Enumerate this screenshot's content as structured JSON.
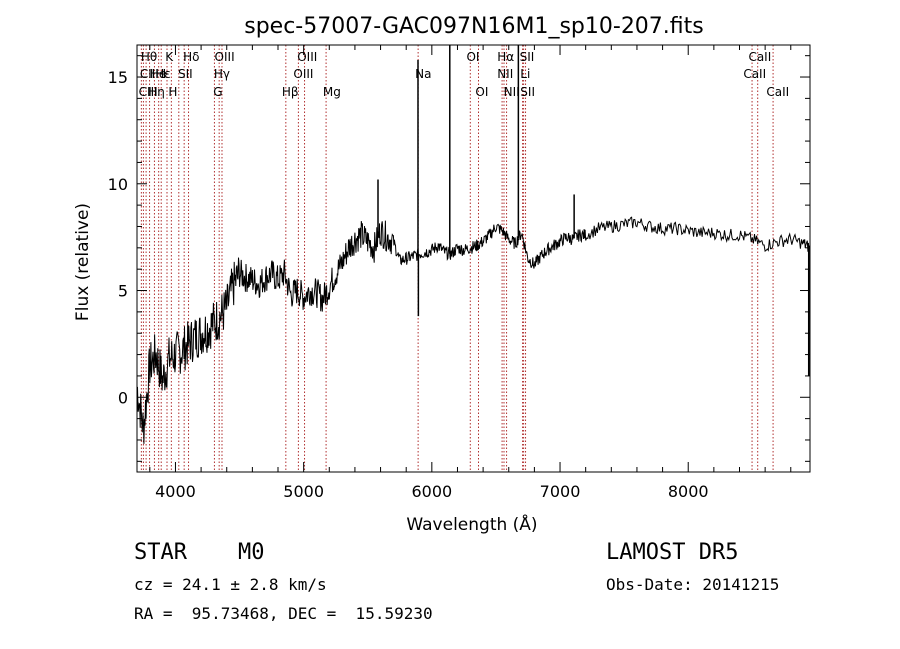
{
  "chart_data": {
    "type": "line",
    "title": "spec-57007-GAC097N16M1_sp10-207.fits",
    "xlabel": "Wavelength (Å)",
    "ylabel": "Flux (relative)",
    "xlim": [
      3700,
      8950
    ],
    "ylim": [
      -3.5,
      16.5
    ],
    "xticks": [
      4000,
      5000,
      6000,
      7000,
      8000
    ],
    "yticks": [
      0,
      5,
      10,
      15
    ],
    "grid": false,
    "series": [
      {
        "x": [
          3700,
          3750,
          3800,
          3850,
          3900,
          3950,
          4000,
          4050,
          4100,
          4150,
          4200,
          4250,
          4300,
          4350,
          4400,
          4450,
          4500,
          4550,
          4600,
          4650,
          4700,
          4750,
          4800,
          4850,
          4900,
          4950,
          5000,
          5050,
          5100,
          5150,
          5200,
          5250,
          5300,
          5350,
          5400,
          5450,
          5500,
          5550,
          5600,
          5650,
          5700,
          5750,
          5800,
          5850,
          5900,
          5950,
          6000,
          6050,
          6100,
          6150,
          6200,
          6250,
          6300,
          6350,
          6400,
          6450,
          6500,
          6550,
          6600,
          6650,
          6700,
          6750,
          6800,
          6850,
          6900,
          6950,
          7000,
          7050,
          7100,
          7150,
          7200,
          7300,
          7400,
          7500,
          7600,
          7700,
          7800,
          7900,
          8000,
          8100,
          8200,
          8300,
          8400,
          8500,
          8600,
          8700,
          8800,
          8900,
          8950
        ],
        "y": [
          0.5,
          -1.5,
          1.5,
          2.0,
          0.8,
          1.8,
          2.0,
          2.2,
          2.5,
          2.8,
          3.0,
          3.2,
          3.5,
          3.8,
          4.2,
          5.2,
          5.8,
          5.6,
          5.5,
          5.3,
          5.6,
          5.8,
          5.5,
          5.8,
          4.8,
          5.0,
          4.7,
          5.0,
          4.9,
          4.6,
          5.2,
          5.8,
          6.3,
          7.0,
          7.4,
          7.6,
          7.3,
          7.0,
          7.8,
          7.5,
          7.3,
          6.4,
          6.5,
          6.6,
          6.7,
          6.8,
          6.9,
          7.1,
          6.8,
          6.7,
          7.0,
          6.9,
          7.0,
          7.1,
          7.3,
          7.6,
          8.0,
          7.8,
          7.4,
          7.2,
          7.7,
          6.5,
          6.2,
          6.6,
          6.9,
          7.1,
          7.3,
          7.5,
          7.4,
          7.6,
          7.6,
          7.9,
          8.0,
          8.1,
          8.2,
          8.0,
          7.9,
          7.9,
          7.8,
          7.7,
          7.7,
          7.6,
          7.6,
          7.4,
          7.1,
          7.3,
          7.4,
          7.2,
          7.0
        ]
      }
    ],
    "spikes": [
      {
        "x": 5580,
        "top": 10.2
      },
      {
        "x": 5892,
        "top": 15.8
      },
      {
        "x": 5895,
        "top": 3.8
      },
      {
        "x": 6140,
        "top": 16.5
      },
      {
        "x": 6675,
        "top": 16.5
      },
      {
        "x": 7110,
        "top": 9.5
      },
      {
        "x": 8940,
        "top": 1.0
      }
    ],
    "lines": [
      {
        "x": 3734,
        "row": 0,
        "label": ""
      },
      {
        "x": 3750,
        "row": 1,
        "label": ""
      },
      {
        "x": 3771,
        "row": 0,
        "label": ""
      },
      {
        "x": 3798,
        "row": 2,
        "label": ""
      },
      {
        "x": 3836,
        "row": 2,
        "label": ""
      },
      {
        "x": 3869,
        "row": 1,
        "label": ""
      },
      {
        "x": 3889,
        "row": 0,
        "label": ""
      },
      {
        "x": 3934,
        "row": 0,
        "label": ""
      },
      {
        "x": 3968,
        "row": 1,
        "label": ""
      },
      {
        "x": 4026,
        "row": 1,
        "label": ""
      },
      {
        "x": 4068,
        "row": 0,
        "label": ""
      },
      {
        "x": 4102,
        "row": 1,
        "label": ""
      },
      {
        "x": 4304,
        "row": 2,
        "label": ""
      },
      {
        "x": 4341,
        "row": 1,
        "label": ""
      },
      {
        "x": 4363,
        "row": 0,
        "label": ""
      },
      {
        "x": 4861,
        "row": 2,
        "label": ""
      },
      {
        "x": 4959,
        "row": 1,
        "label": ""
      },
      {
        "x": 5007,
        "row": 0,
        "label": ""
      },
      {
        "x": 5175,
        "row": 2,
        "label": ""
      },
      {
        "x": 5893,
        "row": 1,
        "label": ""
      },
      {
        "x": 6300,
        "row": 0,
        "label": ""
      },
      {
        "x": 6364,
        "row": 2,
        "label": ""
      },
      {
        "x": 6548,
        "row": 1,
        "label": ""
      },
      {
        "x": 6563,
        "row": 0,
        "label": ""
      },
      {
        "x": 6583,
        "row": 2,
        "label": ""
      },
      {
        "x": 6708,
        "row": 1,
        "label": ""
      },
      {
        "x": 6716,
        "row": 0,
        "label": ""
      },
      {
        "x": 6731,
        "row": 2,
        "label": ""
      },
      {
        "x": 8498,
        "row": 1,
        "label": ""
      },
      {
        "x": 8542,
        "row": 0,
        "label": ""
      },
      {
        "x": 8662,
        "row": 2,
        "label": ""
      }
    ],
    "line_labels": [
      {
        "text": "Hθ",
        "x": 3730,
        "row": 0
      },
      {
        "text": "CIII",
        "x": 3722,
        "row": 1
      },
      {
        "text": "Hε",
        "x": 3842,
        "row": 1
      },
      {
        "text": "K",
        "x": 3920,
        "row": 0
      },
      {
        "text": "He",
        "x": 3800,
        "row": 1
      },
      {
        "text": "I",
        "x": 3900,
        "row": 1
      },
      {
        "text": "CIII",
        "x": 3713,
        "row": 2
      },
      {
        "text": "Hη",
        "x": 3788,
        "row": 2
      },
      {
        "text": "H",
        "x": 3945,
        "row": 2
      },
      {
        "text": "Hδ",
        "x": 4060,
        "row": 0
      },
      {
        "text": "SII",
        "x": 4020,
        "row": 1
      },
      {
        "text": "OIII",
        "x": 4305,
        "row": 0
      },
      {
        "text": "Hγ",
        "x": 4300,
        "row": 1
      },
      {
        "text": "G",
        "x": 4295,
        "row": 2
      },
      {
        "text": "Hβ",
        "x": 4830,
        "row": 2
      },
      {
        "text": "OIII",
        "x": 4950,
        "row": 0
      },
      {
        "text": "OIII",
        "x": 4920,
        "row": 1
      },
      {
        "text": "Mg",
        "x": 5150,
        "row": 2
      },
      {
        "text": "Na",
        "x": 5870,
        "row": 1
      },
      {
        "text": "OI",
        "x": 6270,
        "row": 0
      },
      {
        "text": "OI",
        "x": 6340,
        "row": 2
      },
      {
        "text": "Hα",
        "x": 6510,
        "row": 0
      },
      {
        "text": "NII",
        "x": 6510,
        "row": 1
      },
      {
        "text": "NII",
        "x": 6560,
        "row": 2
      },
      {
        "text": "SII",
        "x": 6685,
        "row": 0
      },
      {
        "text": "Li",
        "x": 6690,
        "row": 1
      },
      {
        "text": "SII",
        "x": 6690,
        "row": 2
      },
      {
        "text": "CaII",
        "x": 8470,
        "row": 0
      },
      {
        "text": "CaII",
        "x": 8430,
        "row": 1
      },
      {
        "text": "CaII",
        "x": 8610,
        "row": 2
      }
    ]
  },
  "info": {
    "class": "STAR",
    "subclass": "M0",
    "survey": "LAMOST DR5",
    "cz": "cz = 24.1 ± 2.8 km/s",
    "obs_date": "Obs-Date: 20141215",
    "radec": "RA =  95.73468, DEC =  15.59230"
  }
}
